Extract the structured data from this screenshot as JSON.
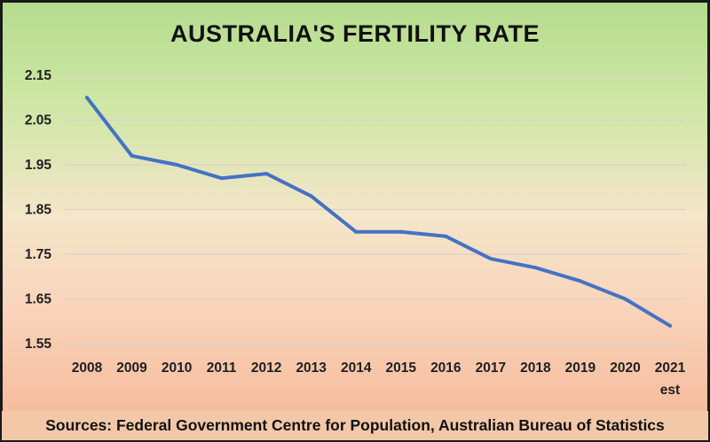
{
  "chart_data": {
    "type": "line",
    "title": "AUSTRALIA'S FERTILITY RATE",
    "categories": [
      "2008",
      "2009",
      "2010",
      "2011",
      "2012",
      "2013",
      "2014",
      "2015",
      "2016",
      "2017",
      "2018",
      "2019",
      "2020",
      "2021"
    ],
    "category_sublabels": {
      "2021": "est"
    },
    "series": [
      {
        "name": "Fertility rate",
        "color": "#4472c4",
        "values": [
          2.1,
          1.97,
          1.95,
          1.92,
          1.93,
          1.88,
          1.8,
          1.8,
          1.79,
          1.74,
          1.72,
          1.69,
          1.65,
          1.59
        ]
      }
    ],
    "yticks": [
      "2.15",
      "2.05",
      "1.95",
      "1.85",
      "1.75",
      "1.65",
      "1.55"
    ],
    "ylim": [
      1.55,
      2.15
    ],
    "xlabel": "",
    "ylabel": "",
    "grid": true,
    "legend": "none"
  },
  "source": "Sources: Federal Government Centre for Population, Australian Bureau of Statistics"
}
